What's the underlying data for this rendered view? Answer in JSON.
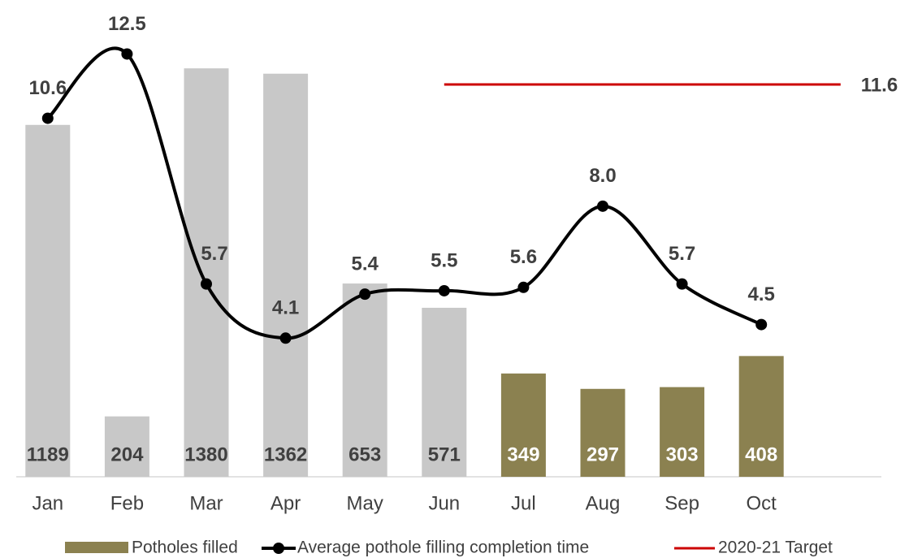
{
  "chart_data": {
    "type": "bar_line",
    "categories": [
      "Jan",
      "Feb",
      "Mar",
      "Apr",
      "May",
      "Jun",
      "Jul",
      "Aug",
      "Sep",
      "Oct"
    ],
    "ylim": [
      0,
      1600
    ],
    "y2lim": [
      0,
      14
    ],
    "series": [
      {
        "name": "Potholes filled",
        "type": "bar",
        "color": "#8b8150",
        "colors": [
          "#c8c8c8",
          "#c8c8c8",
          "#c8c8c8",
          "#c8c8c8",
          "#c8c8c8",
          "#c8c8c8",
          "#8b8150",
          "#8b8150",
          "#8b8150",
          "#8b8150"
        ],
        "label_colors": [
          "#404040",
          "#404040",
          "#404040",
          "#404040",
          "#404040",
          "#404040",
          "#ffffff",
          "#ffffff",
          "#ffffff",
          "#ffffff"
        ],
        "values": [
          1189,
          204,
          1380,
          1362,
          653,
          571,
          349,
          297,
          303,
          408
        ]
      },
      {
        "name": "Average pothole filling completion time",
        "type": "line",
        "axis": "y2",
        "color": "#000000",
        "values": [
          10.6,
          12.5,
          5.7,
          4.1,
          5.4,
          5.5,
          5.6,
          8.0,
          5.7,
          4.5
        ],
        "value_labels": [
          "10.6",
          "12.5",
          "5.7",
          "4.1",
          "5.4",
          "5.5",
          "5.6",
          "8.0",
          "5.7",
          "4.5"
        ]
      }
    ],
    "target": {
      "name": "2020-21 Target",
      "value": 11.6,
      "start": "Jun",
      "color": "#cc0000"
    }
  }
}
